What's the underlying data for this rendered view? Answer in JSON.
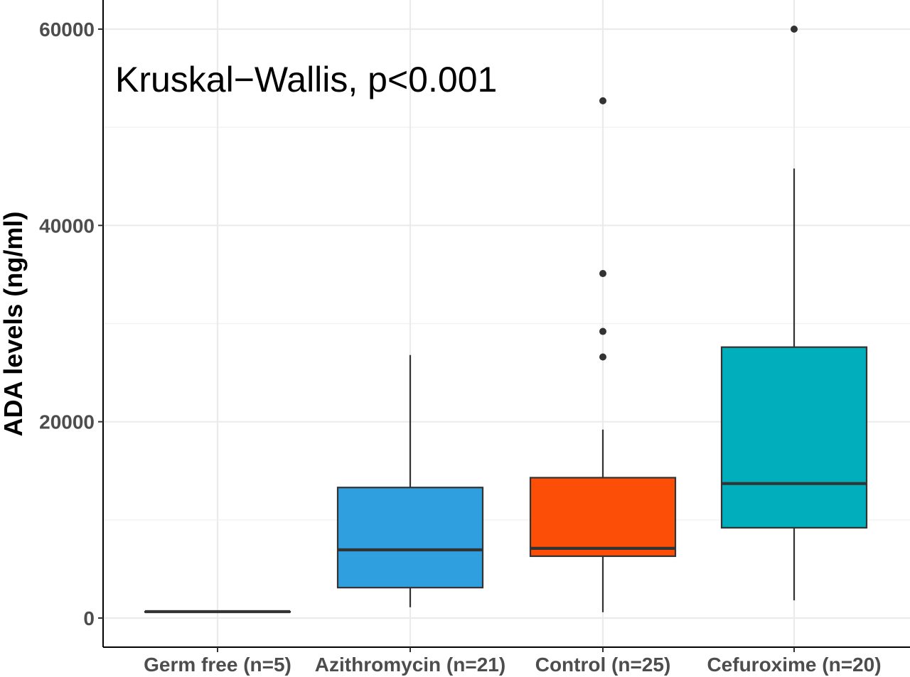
{
  "chart_data": {
    "type": "box",
    "ylabel": "ADA levels (ng/ml)",
    "xlabel": "",
    "ylim": [
      -3000,
      63000
    ],
    "yticks": [
      0,
      20000,
      40000,
      60000
    ],
    "grid": true,
    "legend": "none",
    "annotation": "Kruskal−Wallis, p<0.001",
    "categories": [
      "Germ free (n=5)",
      "Azithromycin (n=21)",
      "Control (n=25)",
      "Cefuroxime (n=20)"
    ],
    "boxes": [
      {
        "category": "Germ free (n=5)",
        "color": "#3e3e3e",
        "min": 650,
        "q1": 650,
        "median": 650,
        "q3": 650,
        "max": 650,
        "outliers": []
      },
      {
        "category": "Azithromycin (n=21)",
        "color": "#2f9fe0",
        "min": 1100,
        "q1": 3100,
        "median": 6950,
        "q3": 13300,
        "max": 26800,
        "outliers": []
      },
      {
        "category": "Control (n=25)",
        "color": "#fc4e07",
        "min": 600,
        "q1": 6300,
        "median": 7100,
        "q3": 14300,
        "max": 19200,
        "outliers": [
          26600,
          29200,
          35100,
          52700
        ]
      },
      {
        "category": "Cefuroxime (n=20)",
        "color": "#00afbb",
        "min": 1800,
        "q1": 9200,
        "median": 13700,
        "q3": 27600,
        "max": 45800,
        "outliers": [
          60000
        ]
      }
    ]
  }
}
